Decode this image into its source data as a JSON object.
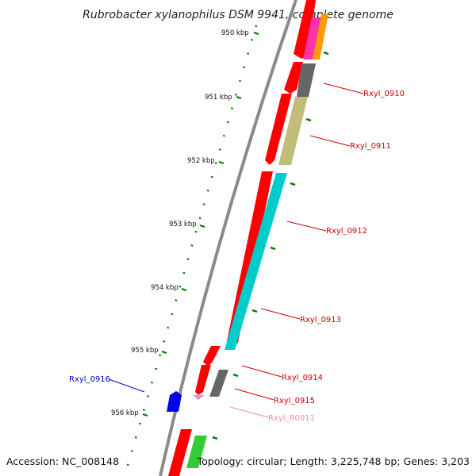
{
  "title": "Rubrobacter xylanophilus DSM 9941, complete genome",
  "footer": {
    "accession": "Accession: NC_008148",
    "summary": "Topology: circular; Length: 3,225,748 bp; Genes: 3,203"
  },
  "kbp_labels": [
    "950 kbp",
    "951 kbp",
    "952 kbp",
    "953 kbp",
    "954 kbp",
    "955 kbp",
    "956 kbp"
  ],
  "gene_labels": [
    {
      "text": "Rxyl_0910",
      "color": "#cc0000"
    },
    {
      "text": "Rxyl_0911",
      "color": "#cc0000"
    },
    {
      "text": "Rxyl_0912",
      "color": "#cc0000"
    },
    {
      "text": "Rxyl_0913",
      "color": "#cc0000"
    },
    {
      "text": "Rxyl_0914",
      "color": "#cc0000"
    },
    {
      "text": "Rxyl_0915",
      "color": "#cc0000"
    },
    {
      "text": "Rxyl_R0011",
      "color": "#ee88bb"
    },
    {
      "text": "Rxyl_0916",
      "color": "#0000cc"
    }
  ],
  "colors": {
    "cds": "#ff0000",
    "backbone": "#8a8a8a",
    "tick": "#007700",
    "rxyl_0910": "#666666",
    "rxyl_0911": "#c2bd7a",
    "rxyl_0912_0913": "#00cccc",
    "rxyl_0915": "#666666",
    "rxyl_r0011": "#ff88cc",
    "rxyl_0916": "#0000ee",
    "magenta_feature": "#ff33aa",
    "orange_feature": "#ff9900",
    "green_feature": "#33cc33"
  }
}
